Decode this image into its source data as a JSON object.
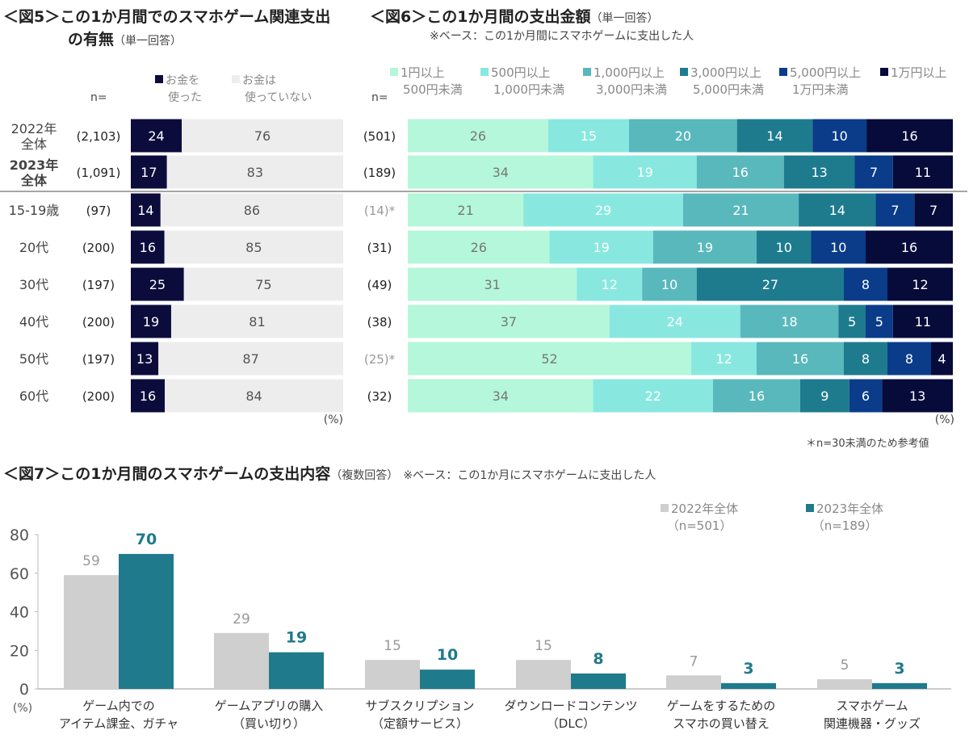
{
  "fig5": {
    "title_line1": "＜図5＞この1か月間でのスマホゲーム関連支出",
    "title_line2": "の有無",
    "title_note": "（単一回答）",
    "n_label": "n=",
    "unit": "(%)",
    "legend": [
      {
        "line1": "お金を",
        "line2": "使った",
        "color": "#0c0c3c"
      },
      {
        "line1": "お金は",
        "line2": "使っていない",
        "color": "#ededed"
      }
    ]
  },
  "fig6": {
    "title": "＜図6＞この1か月間の支出金額",
    "title_note": "（単一回答）",
    "base_note": "※ベース：この1か月間にスマホゲームに支出した人",
    "n_label": "n=",
    "unit": "(%)",
    "footnote": "＊n=30未満のため参考値",
    "legend": [
      {
        "line1": "1円以上",
        "line2": "500円未満",
        "color": "#b4f7da"
      },
      {
        "line1": "500円以上",
        "line2": "1,000円未満",
        "color": "#88e8e0"
      },
      {
        "line1": "1,000円以上",
        "line2": "3,000円未満",
        "color": "#59b8bc"
      },
      {
        "line1": "3,000円以上",
        "line2": "5,000円未満",
        "color": "#1e7b8e"
      },
      {
        "line1": "5,000円以上",
        "line2": "1万円未満",
        "color": "#0a3c8a"
      },
      {
        "line1": "1万円以上",
        "line2": "",
        "color": "#060b3a"
      }
    ]
  },
  "fig7": {
    "title": "＜図7＞この1か月間のスマホゲームの支出内容",
    "title_note": "（複数回答）",
    "base_note": "※ベース：この1か月にスマホゲームに支出した人",
    "unit": "(%)",
    "legend": [
      {
        "line1": "2022年全体",
        "line2": "（n=501）",
        "color": "#cfcfcf"
      },
      {
        "line1": "2023年全体",
        "line2": "（n=189）",
        "color": "#1f7a8c"
      }
    ]
  },
  "chart_data": [
    {
      "type": "bar",
      "orientation": "horizontal-stacked-100",
      "title": "＜図5＞この1か月間でのスマホゲーム関連支出の有無（単一回答）",
      "categories": [
        "2022年全体",
        "2023年全体",
        "15-19歳",
        "20代",
        "30代",
        "40代",
        "50代",
        "60代"
      ],
      "n": [
        "(2,103)",
        "(1,091)",
        "(97)",
        "(200)",
        "(197)",
        "(200)",
        "(197)",
        "(200)"
      ],
      "series": [
        {
          "name": "お金を使った",
          "values": [
            24,
            17,
            14,
            16,
            25,
            19,
            13,
            16
          ]
        },
        {
          "name": "お金は使っていない",
          "values": [
            76,
            83,
            86,
            85,
            75,
            81,
            87,
            84
          ]
        }
      ],
      "unit": "(%)"
    },
    {
      "type": "bar",
      "orientation": "horizontal-stacked-100",
      "title": "＜図6＞この1か月間の支出金額（単一回答）",
      "n": [
        "(501)",
        "(189)",
        "(14)*",
        "(31)",
        "(49)",
        "(38)",
        "(25)*",
        "(32)"
      ],
      "n_reference_only": [
        false,
        false,
        true,
        false,
        false,
        false,
        true,
        false
      ],
      "series": [
        {
          "name": "1円以上500円未満",
          "values": [
            26,
            34,
            21,
            26,
            31,
            37,
            52,
            34
          ]
        },
        {
          "name": "500円以上1,000円未満",
          "values": [
            15,
            19,
            29,
            19,
            12,
            24,
            12,
            22
          ]
        },
        {
          "name": "1,000円以上3,000円未満",
          "values": [
            20,
            16,
            21,
            19,
            10,
            18,
            16,
            16
          ]
        },
        {
          "name": "3,000円以上5,000円未満",
          "values": [
            14,
            13,
            14,
            10,
            27,
            5,
            8,
            9
          ]
        },
        {
          "name": "5,000円以上1万円未満",
          "values": [
            10,
            7,
            7,
            10,
            8,
            5,
            8,
            6
          ]
        },
        {
          "name": "1万円以上",
          "values": [
            16,
            11,
            7,
            16,
            12,
            11,
            4,
            13
          ]
        }
      ],
      "unit": "(%)"
    },
    {
      "type": "bar",
      "title": "＜図7＞この1か月間のスマホゲームの支出内容（複数回答）",
      "categories": [
        [
          "ゲーム内での",
          "アイテム課金、ガチャ"
        ],
        [
          "ゲームアプリの購入",
          "（買い切り）"
        ],
        [
          "サブスクリプション",
          "（定額サービス）"
        ],
        [
          "ダウンロードコンテンツ",
          "（DLC）"
        ],
        [
          "ゲームをするための",
          "スマホの買い替え"
        ],
        [
          "スマホゲーム",
          "関連機器・グッズ"
        ]
      ],
      "series": [
        {
          "name": "2022年全体（n=501）",
          "values": [
            59,
            29,
            15,
            15,
            7,
            5
          ]
        },
        {
          "name": "2023年全体（n=189）",
          "values": [
            70,
            19,
            10,
            8,
            3,
            3
          ]
        }
      ],
      "ylim": [
        0,
        80
      ],
      "yticks": [
        "0",
        "20",
        "40",
        "60",
        "80"
      ],
      "ylabel": "(%)",
      "grid": false,
      "legend_position": "top-right"
    }
  ]
}
